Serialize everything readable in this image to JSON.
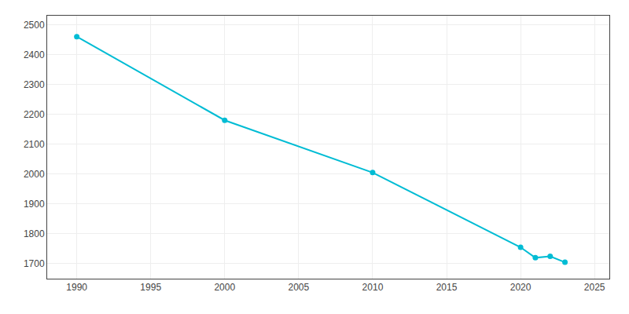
{
  "chart_data": {
    "type": "line",
    "x": [
      1990,
      2000,
      2010,
      2020,
      2021,
      2022,
      2023
    ],
    "values": [
      2460,
      2180,
      2005,
      1755,
      1720,
      1725,
      1705
    ],
    "color": "#00BCD4",
    "marker": "circle",
    "xlim": [
      1988,
      2026
    ],
    "ylim": [
      1650,
      2530
    ],
    "xticks": [
      1990,
      1995,
      2000,
      2005,
      2010,
      2015,
      2020,
      2025
    ],
    "yticks": [
      1700,
      1800,
      1900,
      2000,
      2100,
      2200,
      2300,
      2400,
      2500
    ],
    "grid": true
  }
}
